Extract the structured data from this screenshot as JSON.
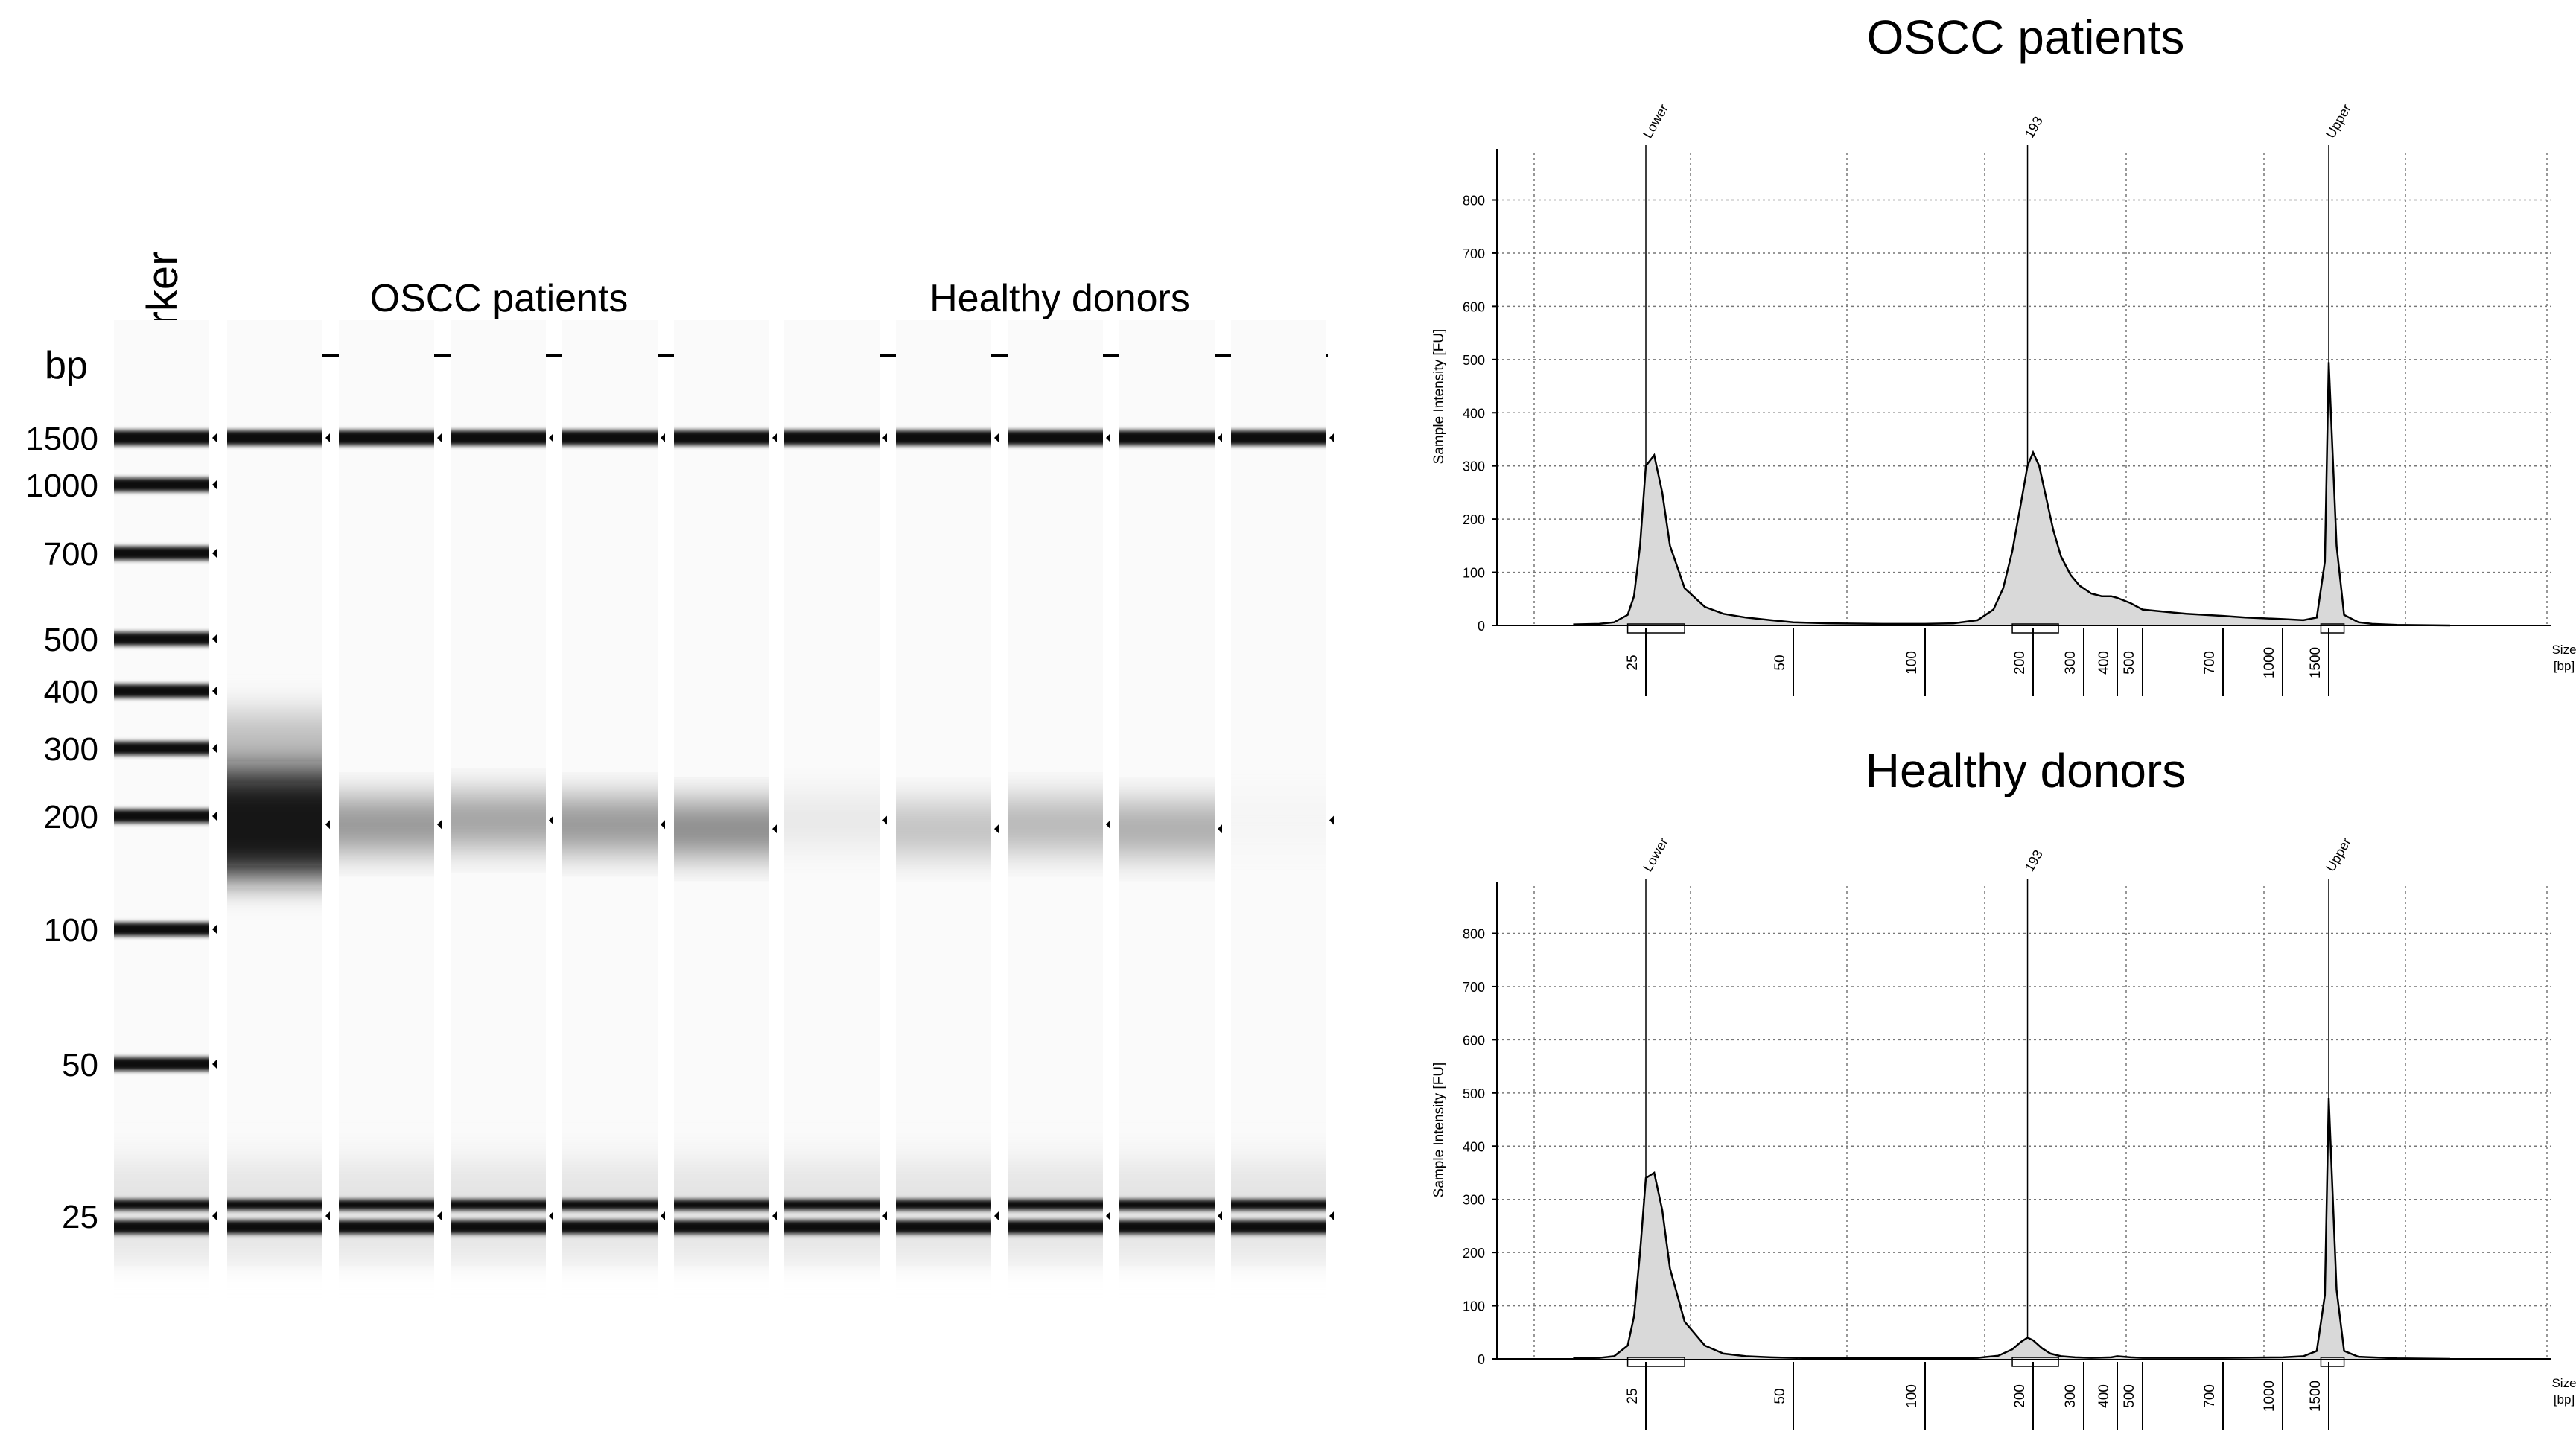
{
  "gel": {
    "marker_label": "Marker",
    "bp_label": "bp",
    "group_labels": [
      "OSCC patients",
      "Healthy donors"
    ],
    "ladder_bp": [
      1500,
      1000,
      700,
      500,
      400,
      300,
      200,
      100,
      50,
      25
    ],
    "ladder_labels": [
      "1500",
      "1000",
      "700",
      "500",
      "400",
      "300",
      "200",
      "100",
      "50",
      "25"
    ],
    "lanes": [
      {
        "group": "OSCC patients",
        "peak_bp": 190,
        "intensity": 1.0,
        "spread": "wide"
      },
      {
        "group": "OSCC patients",
        "peak_bp": 190,
        "intensity": 0.45,
        "spread": "normal"
      },
      {
        "group": "OSCC patients",
        "peak_bp": 195,
        "intensity": 0.4,
        "spread": "normal"
      },
      {
        "group": "OSCC patients",
        "peak_bp": 190,
        "intensity": 0.45,
        "spread": "normal"
      },
      {
        "group": "OSCC patients",
        "peak_bp": 185,
        "intensity": 0.5,
        "spread": "normal"
      },
      {
        "group": "Healthy donors",
        "peak_bp": 195,
        "intensity": 0.08,
        "spread": "normal"
      },
      {
        "group": "Healthy donors",
        "peak_bp": 185,
        "intensity": 0.25,
        "spread": "normal"
      },
      {
        "group": "Healthy donors",
        "peak_bp": 190,
        "intensity": 0.3,
        "spread": "normal"
      },
      {
        "group": "Healthy donors",
        "peak_bp": 185,
        "intensity": 0.35,
        "spread": "normal"
      },
      {
        "group": "Healthy donors",
        "peak_bp": 195,
        "intensity": 0.02,
        "spread": "normal"
      }
    ]
  },
  "chart_data": [
    {
      "type": "line",
      "title": "OSCC patients",
      "ylabel": "Sample Intensity [FU]",
      "xlabel": "Size [bp]",
      "xlabel_lines": [
        "Size",
        "[bp]"
      ],
      "ylim": [
        0,
        800
      ],
      "yticks": [
        0,
        100,
        200,
        300,
        400,
        500,
        600,
        700,
        800
      ],
      "ytick_labels": [
        "0",
        "100",
        "200",
        "300",
        "400",
        "500",
        "600",
        "700",
        "800"
      ],
      "x_ticks_bp": [
        25,
        50,
        100,
        200,
        300,
        400,
        500,
        700,
        1000,
        1500
      ],
      "x_tick_labels": [
        "25",
        "50",
        "100",
        "200",
        "300",
        "400",
        "500",
        "700",
        "1000",
        "1500"
      ],
      "peak_labels": [
        "Lower",
        "193",
        "Upper"
      ],
      "peak_positions_bp": [
        25,
        193,
        1500
      ],
      "series": [
        {
          "name": "OSCC patients",
          "x": [
            15,
            18,
            20,
            22,
            23,
            24,
            25,
            26,
            27,
            28,
            30,
            33,
            36,
            40,
            45,
            50,
            60,
            80,
            100,
            120,
            140,
            155,
            165,
            175,
            185,
            193,
            200,
            210,
            220,
            235,
            250,
            270,
            290,
            320,
            350,
            380,
            400,
            450,
            500,
            600,
            700,
            800,
            1000,
            1200,
            1350,
            1450,
            1500,
            1550,
            1600,
            1700,
            1800,
            2000,
            2500
          ],
          "y": [
            2,
            3,
            6,
            20,
            55,
            150,
            300,
            320,
            250,
            150,
            70,
            35,
            22,
            15,
            10,
            6,
            4,
            3,
            3,
            4,
            10,
            30,
            70,
            140,
            230,
            300,
            325,
            300,
            250,
            180,
            130,
            95,
            75,
            60,
            55,
            55,
            52,
            42,
            30,
            22,
            18,
            15,
            12,
            10,
            15,
            120,
            495,
            150,
            20,
            6,
            3,
            1,
            0
          ]
        }
      ]
    },
    {
      "type": "line",
      "title": "Healthy donors",
      "ylabel": "Sample Intensity [FU]",
      "xlabel": "Size [bp]",
      "xlabel_lines": [
        "Size",
        "[bp]"
      ],
      "ylim": [
        0,
        800
      ],
      "yticks": [
        0,
        100,
        200,
        300,
        400,
        500,
        600,
        700,
        800
      ],
      "ytick_labels": [
        "0",
        "100",
        "200",
        "300",
        "400",
        "500",
        "600",
        "700",
        "800"
      ],
      "x_ticks_bp": [
        25,
        50,
        100,
        200,
        300,
        400,
        500,
        700,
        1000,
        1500
      ],
      "x_tick_labels": [
        "25",
        "50",
        "100",
        "200",
        "300",
        "400",
        "500",
        "700",
        "1000",
        "1500"
      ],
      "peak_labels": [
        "Lower",
        "193",
        "Upper"
      ],
      "peak_positions_bp": [
        25,
        193,
        1500
      ],
      "series": [
        {
          "name": "Healthy donors",
          "x": [
            15,
            18,
            20,
            22,
            23,
            24,
            25,
            26,
            27,
            28,
            30,
            33,
            36,
            40,
            45,
            50,
            60,
            80,
            100,
            120,
            140,
            160,
            175,
            185,
            193,
            200,
            215,
            230,
            250,
            280,
            320,
            380,
            400,
            450,
            500,
            700,
            1000,
            1200,
            1350,
            1450,
            1500,
            1550,
            1600,
            1700,
            2000,
            2500
          ],
          "y": [
            1,
            2,
            5,
            25,
            80,
            200,
            340,
            350,
            280,
            170,
            70,
            25,
            10,
            5,
            3,
            2,
            1,
            1,
            1,
            1,
            2,
            6,
            18,
            32,
            40,
            35,
            20,
            10,
            5,
            3,
            2,
            3,
            5,
            3,
            2,
            2,
            3,
            5,
            15,
            120,
            490,
            130,
            15,
            4,
            1,
            0
          ]
        }
      ]
    }
  ]
}
